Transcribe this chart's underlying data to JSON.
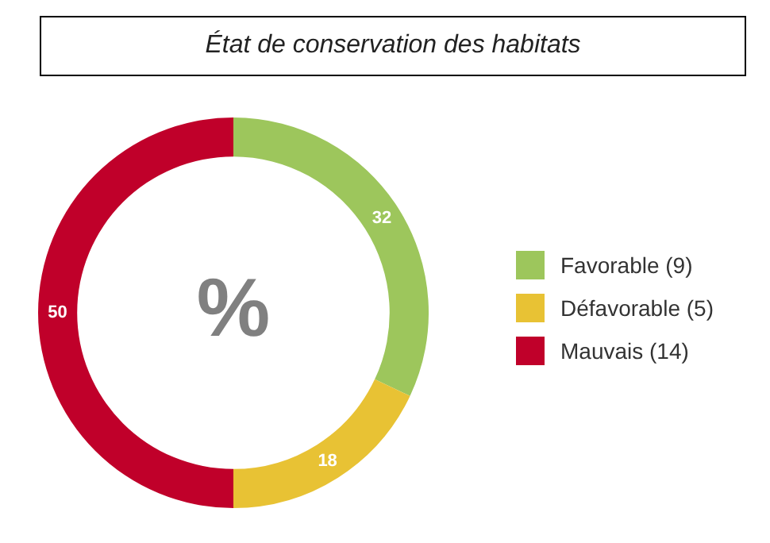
{
  "chart_data": {
    "type": "donut",
    "title": "État de conservation des habitats",
    "categories": [
      "Favorable (9)",
      "Défavorable (5)",
      "Mauvais (14)"
    ],
    "values": [
      32,
      18,
      50
    ],
    "colors": [
      "#9dc65c",
      "#e8c234",
      "#c0002a"
    ],
    "data_labels": true,
    "legend": "right",
    "annotations": [
      "%"
    ]
  }
}
